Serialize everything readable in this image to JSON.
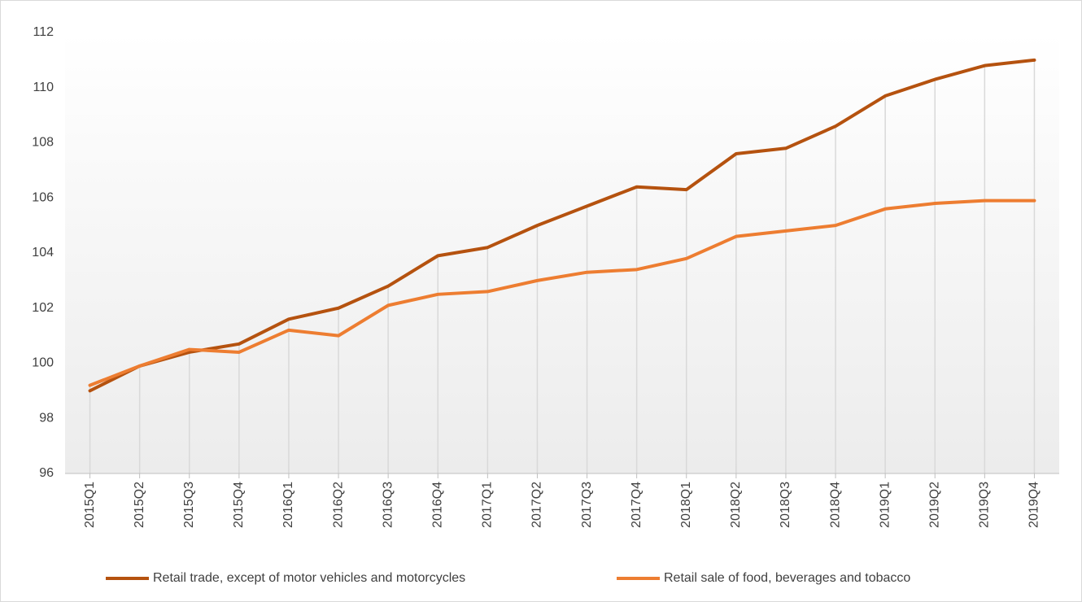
{
  "chart_data": {
    "type": "line",
    "categories": [
      "2015Q1",
      "2015Q2",
      "2015Q3",
      "2015Q4",
      "2016Q1",
      "2016Q2",
      "2016Q3",
      "2016Q4",
      "2017Q1",
      "2017Q2",
      "2017Q3",
      "2017Q4",
      "2018Q1",
      "2018Q2",
      "2018Q3",
      "2018Q4",
      "2019Q1",
      "2019Q2",
      "2019Q3",
      "2019Q4"
    ],
    "series": [
      {
        "name": "Retail trade, except of motor vehicles and motorcycles",
        "color": "#b5520f",
        "values": [
          99.0,
          99.9,
          100.4,
          100.7,
          101.6,
          102.0,
          102.8,
          103.9,
          104.2,
          105.0,
          105.7,
          106.4,
          106.3,
          107.6,
          107.8,
          108.6,
          109.7,
          110.3,
          110.8,
          111.0
        ]
      },
      {
        "name": "Retail sale of food, beverages and tobacco",
        "color": "#ed7d31",
        "values": [
          99.2,
          99.9,
          100.5,
          100.4,
          101.2,
          101.0,
          102.1,
          102.5,
          102.6,
          103.0,
          103.3,
          103.4,
          103.8,
          104.6,
          104.8,
          105.0,
          105.6,
          105.8,
          105.9,
          105.9
        ]
      }
    ],
    "ylim": [
      96,
      112
    ],
    "yticks": [
      96,
      98,
      100,
      102,
      104,
      106,
      108,
      110,
      112
    ],
    "legend": "bottom"
  }
}
